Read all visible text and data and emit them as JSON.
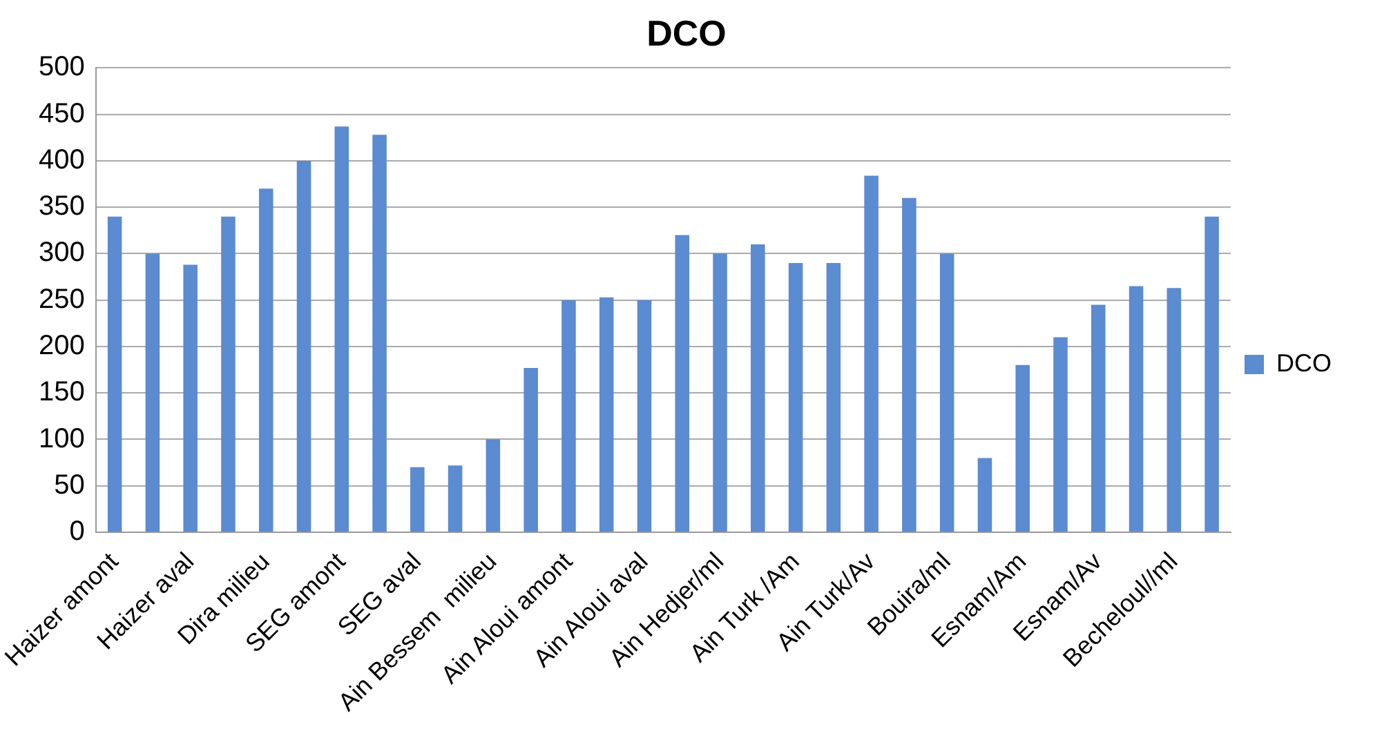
{
  "chart_data": {
    "type": "bar",
    "title": "DCO",
    "categories": [
      "Haizer amont",
      null,
      "Haizer aval",
      null,
      "Dira milieu",
      null,
      "SEG amont",
      null,
      "SEG aval",
      null,
      "Ain Bessem  milieu",
      null,
      "Ain Aloui amont",
      null,
      "Ain Aloui aval",
      null,
      "Ain Hedjer/ml",
      null,
      "Ain Turk /Am",
      null,
      "Ain Turk/Av",
      null,
      "Bouira/ml",
      null,
      "Esnam/Am",
      null,
      "Esnam/Av",
      null,
      "Becheloul//ml",
      null
    ],
    "series": [
      {
        "name": "DCO",
        "color": "#5b8bd0",
        "values": [
          340,
          300,
          288,
          340,
          370,
          400,
          437,
          428,
          70,
          72,
          100,
          177,
          250,
          253,
          250,
          320,
          300,
          310,
          290,
          290,
          384,
          360,
          300,
          80,
          180,
          210,
          245,
          265,
          263,
          340
        ]
      }
    ],
    "ylim": [
      0,
      500
    ],
    "yticks": [
      0,
      50,
      100,
      150,
      200,
      250,
      300,
      350,
      400,
      450,
      500
    ],
    "grid": "y",
    "legend": "right"
  }
}
